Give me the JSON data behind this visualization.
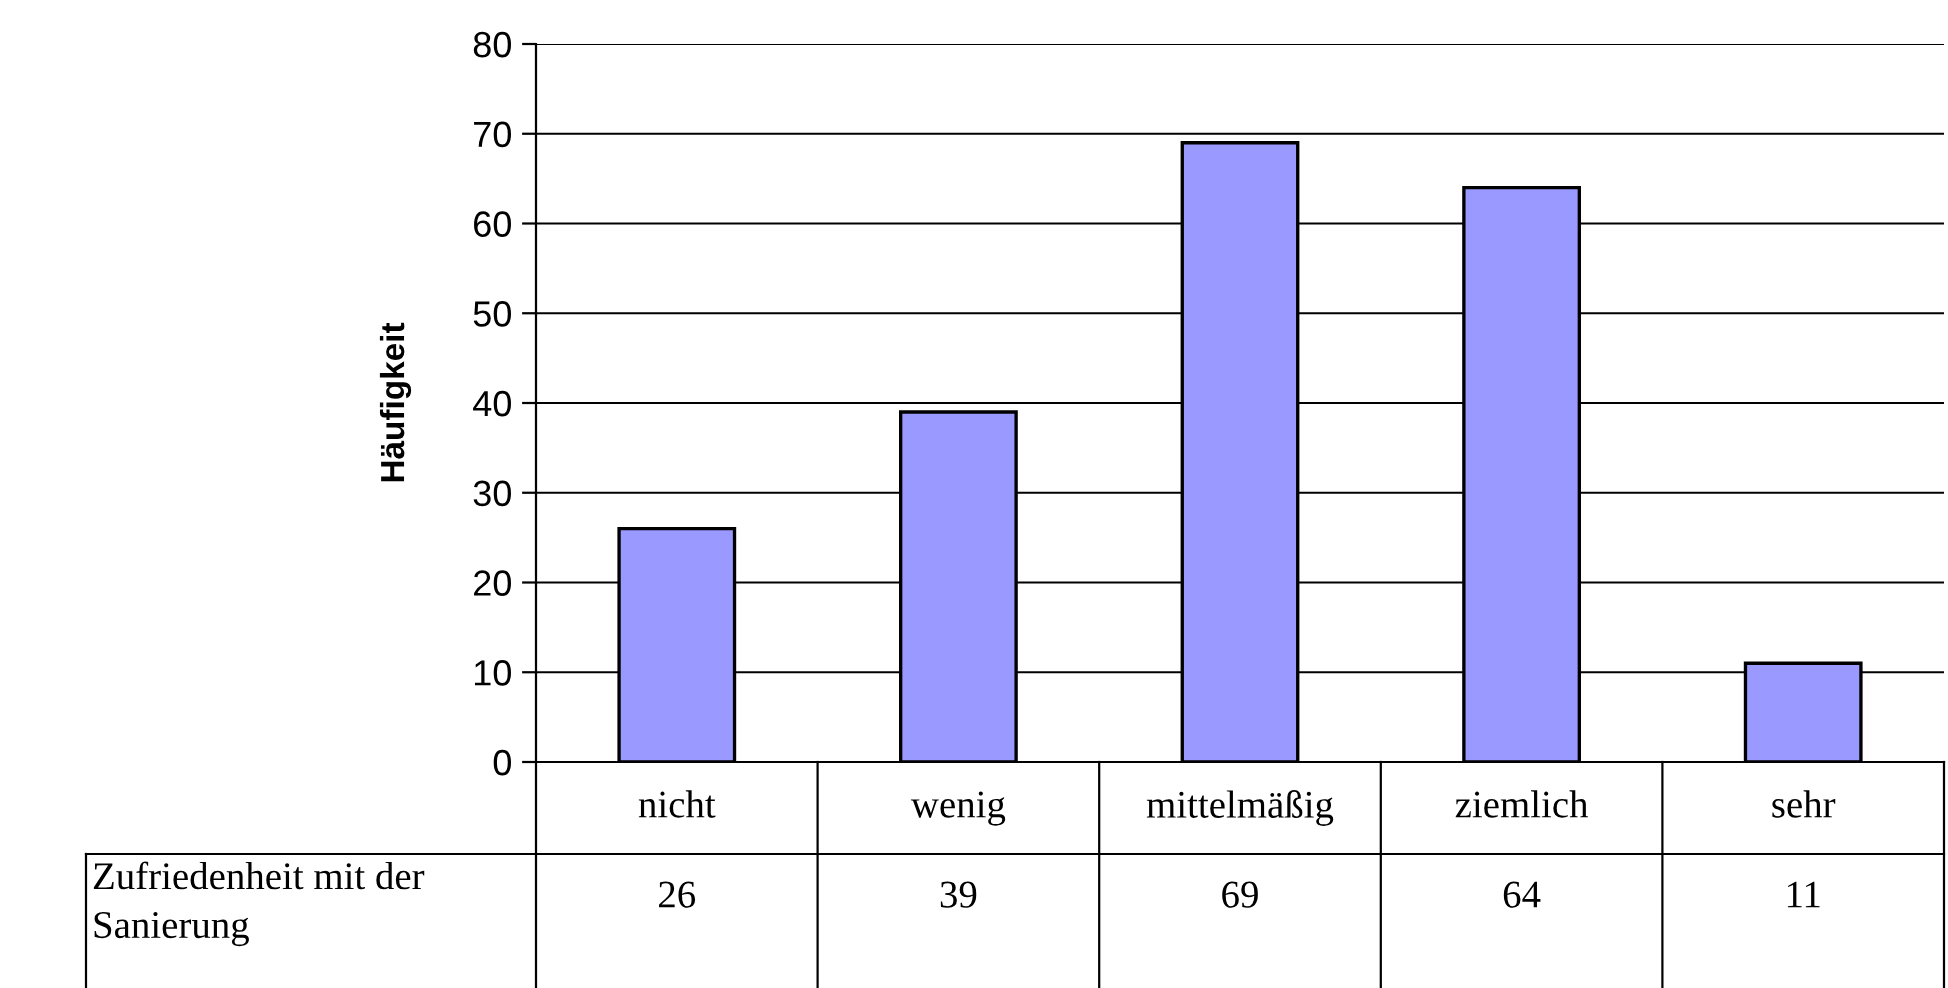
{
  "chart_data": {
    "type": "bar",
    "ylabel": "Häufigkeit",
    "categories": [
      "nicht",
      "wenig",
      "mittelmäßig",
      "ziemlich",
      "sehr"
    ],
    "series": [
      {
        "name": "Zufriedenheit mit der Sanierung",
        "color": "#9999ff",
        "values": [
          26,
          39,
          69,
          64,
          11
        ]
      }
    ],
    "ylim": [
      0,
      80
    ],
    "yticks": [
      0,
      10,
      20,
      30,
      40,
      50,
      60,
      70,
      80
    ],
    "grid": "y",
    "data_labels": true,
    "legend": false
  }
}
